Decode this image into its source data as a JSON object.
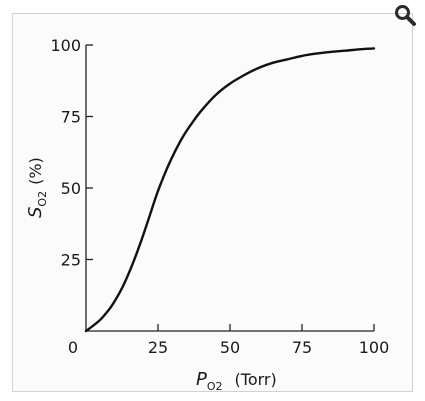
{
  "toolbar": {
    "zoom_icon": "magnifier-icon"
  },
  "chart_data": {
    "type": "line",
    "xlabel": {
      "main": "P",
      "sub": "O2",
      "unit": "(Torr)"
    },
    "ylabel": {
      "main": "S",
      "sub": "O2",
      "unit": "(%)"
    },
    "xlim": [
      0,
      100
    ],
    "ylim": [
      0,
      100
    ],
    "xticks": [
      0,
      25,
      50,
      75,
      100
    ],
    "yticks": [
      25,
      50,
      75,
      100
    ],
    "xtick_labels": [
      "0",
      "25",
      "50",
      "75",
      "100"
    ],
    "ytick_labels": [
      "25",
      "50",
      "75",
      "100"
    ],
    "grid": false,
    "series": [
      {
        "x": [
          0,
          2,
          5,
          8,
          10,
          13,
          16,
          19,
          22,
          25,
          28,
          31,
          34,
          37,
          40,
          45,
          50,
          55,
          60,
          65,
          70,
          75,
          80,
          85,
          90,
          95,
          100
        ],
        "y": [
          0,
          1.5,
          4,
          7.5,
          10.5,
          16,
          23,
          31,
          40,
          49,
          56.5,
          63,
          68.5,
          73,
          77,
          82.5,
          86.5,
          89.5,
          92,
          93.8,
          95,
          96.2,
          97,
          97.6,
          98,
          98.5,
          98.8
        ]
      }
    ]
  }
}
